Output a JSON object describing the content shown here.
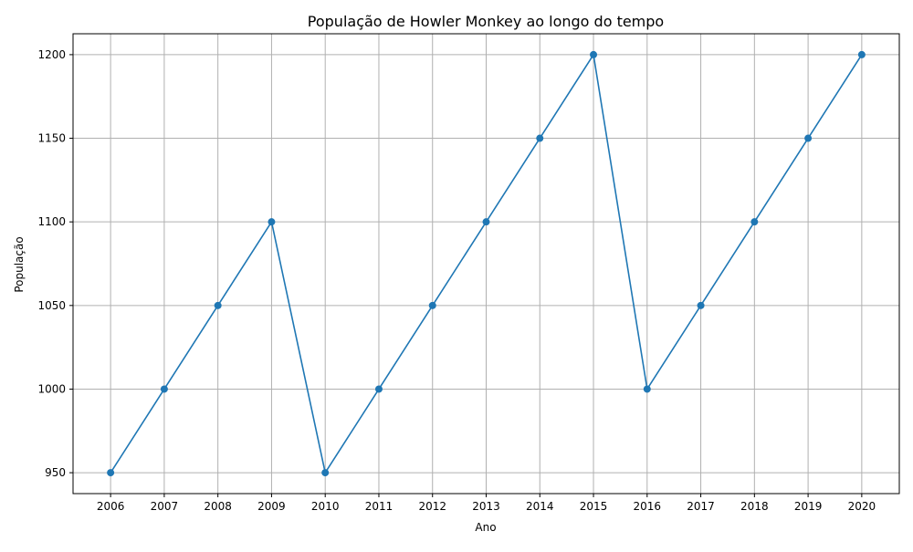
{
  "chart_data": {
    "type": "line",
    "title": "População de Howler Monkey ao longo do tempo",
    "xlabel": "Ano",
    "ylabel": "População",
    "x": [
      2006,
      2007,
      2008,
      2009,
      2010,
      2011,
      2012,
      2013,
      2014,
      2015,
      2016,
      2017,
      2018,
      2019,
      2020
    ],
    "series": [
      {
        "values": [
          950,
          1000,
          1050,
          1100,
          950,
          1000,
          1050,
          1100,
          1150,
          1200,
          1000,
          1050,
          1100,
          1150,
          1200
        ],
        "color": "#1f77b4",
        "marker": "circle"
      }
    ],
    "xticks": [
      "2006",
      "2007",
      "2008",
      "2009",
      "2010",
      "2011",
      "2012",
      "2013",
      "2014",
      "2015",
      "2016",
      "2017",
      "2018",
      "2019",
      "2020"
    ],
    "yticks": [
      950,
      1000,
      1050,
      1100,
      1150,
      1200
    ],
    "grid": true,
    "legend": "none"
  }
}
